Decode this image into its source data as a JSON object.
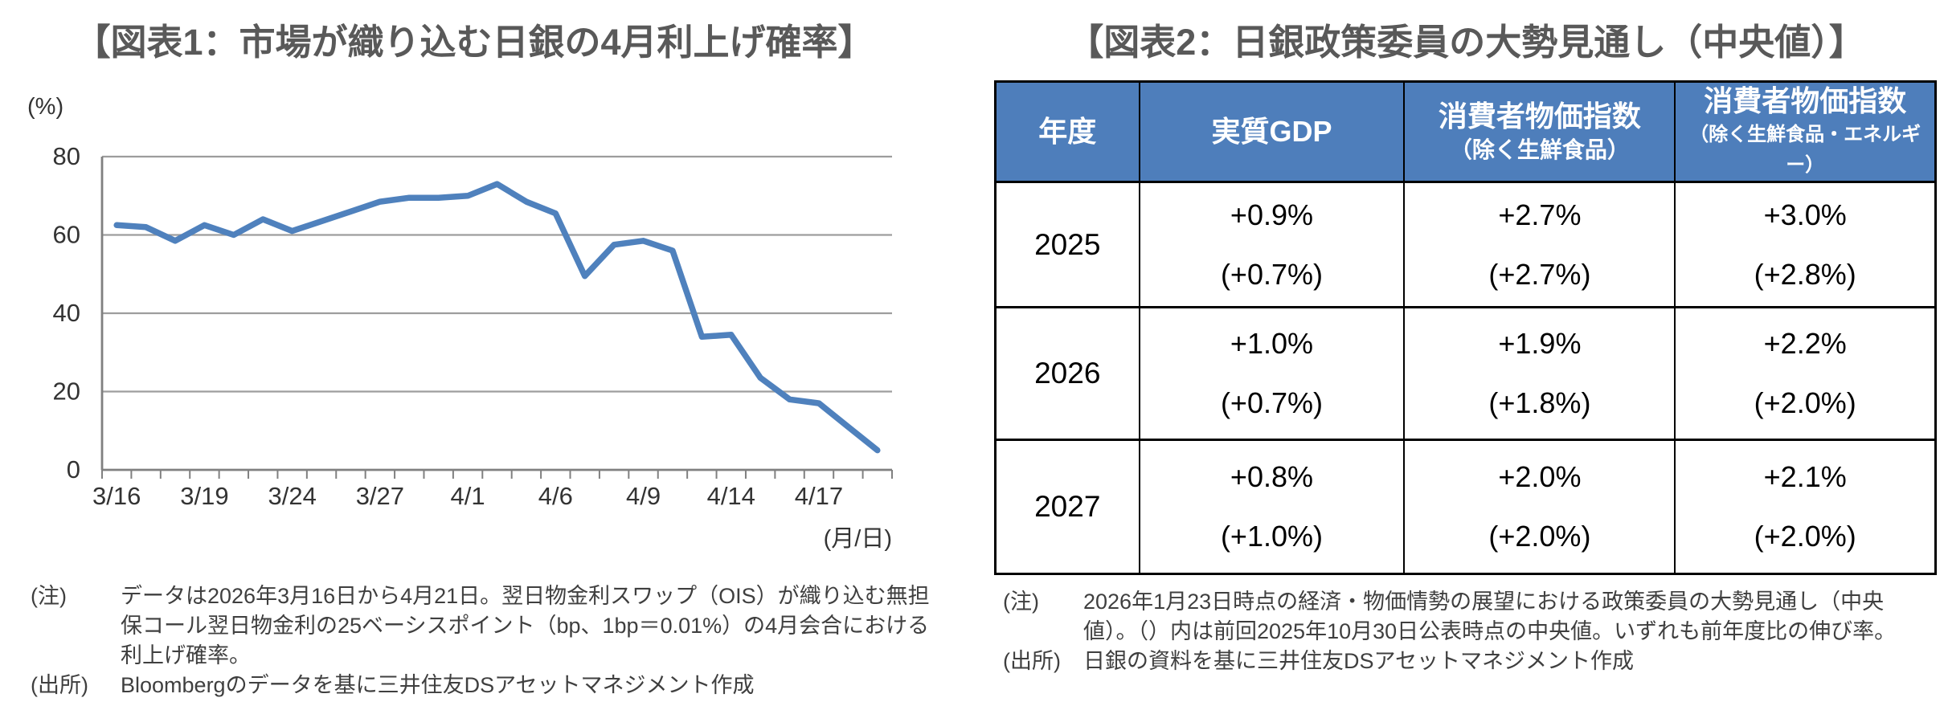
{
  "figure1": {
    "title": "【図表1：市場が織り込む日銀の4月利上げ確率】",
    "note_label": "(注)",
    "note_text": "データは2026年3月16日から4月21日。翌日物金利スワップ（OIS）が織り込む無担保コール翌日物金利の25ベーシスポイント（bp、1bp＝0.01%）の4月会合における利上げ確率。",
    "source_label": "(出所)",
    "source_text": "Bloombergのデータを基に三井住友DSアセットマネジメント作成"
  },
  "chart_data": {
    "type": "line",
    "title": "市場が織り込む日銀の4月利上げ確率",
    "ylabel_unit": "(%)",
    "xlabel_unit": "(月/日)",
    "ylim": [
      0,
      80
    ],
    "yticks": [
      0,
      20,
      40,
      60,
      80
    ],
    "grid": true,
    "legend": "none",
    "line_color": "#4f81bd",
    "categories": [
      "3/16",
      "3/17",
      "3/18",
      "3/19",
      "3/20",
      "3/23",
      "3/24",
      "3/25",
      "3/26",
      "3/27",
      "3/30",
      "3/31",
      "4/1",
      "4/2",
      "4/3",
      "4/6",
      "4/7",
      "4/8",
      "4/9",
      "4/10",
      "4/13",
      "4/14",
      "4/15",
      "4/16",
      "4/17",
      "4/20",
      "4/21"
    ],
    "values": [
      62.5,
      62,
      58.5,
      62.5,
      60,
      64,
      61,
      63.5,
      66,
      68.5,
      69.5,
      69.5,
      70,
      73,
      68.5,
      65.5,
      49.5,
      57.5,
      58.5,
      56,
      34,
      34.5,
      23.5,
      18,
      17,
      11,
      5
    ],
    "x_label_indices": [
      0,
      3,
      6,
      9,
      12,
      15,
      18,
      21,
      24
    ]
  },
  "figure2": {
    "title": "【図表2：日銀政策委員の大勢見通し（中央値）】",
    "note_label": "(注)",
    "note_text": "2026年1月23日時点の経済・物価情勢の展望における政策委員の大勢見通し（中央値）。（）内は前回2025年10月30日公表時点の中央値。いずれも前年度比の伸び率。",
    "source_label": "(出所)",
    "source_text": "日銀の資料を基に三井住友DSアセットマネジメント作成"
  },
  "table": {
    "columns": [
      {
        "label": "年度",
        "sublabel": ""
      },
      {
        "label": "実質GDP",
        "sublabel": ""
      },
      {
        "label": "消費者物価指数",
        "sublabel": "（除く生鮮食品）"
      },
      {
        "label": "消費者物価指数",
        "sublabel": "（除く生鮮食品・エネルギー）"
      }
    ],
    "rows": [
      {
        "year": "2025",
        "gdp": "+0.9%",
        "gdp_prev": "(+0.7%)",
        "cpi_ex_fresh": "+2.7%",
        "cpi_ex_fresh_prev": "(+2.7%)",
        "cpi_ex_fresh_energy": "+3.0%",
        "cpi_ex_fresh_energy_prev": "(+2.8%)"
      },
      {
        "year": "2026",
        "gdp": "+1.0%",
        "gdp_prev": "(+0.7%)",
        "cpi_ex_fresh": "+1.9%",
        "cpi_ex_fresh_prev": "(+1.8%)",
        "cpi_ex_fresh_energy": "+2.2%",
        "cpi_ex_fresh_energy_prev": "(+2.0%)"
      },
      {
        "year": "2027",
        "gdp": "+0.8%",
        "gdp_prev": "(+1.0%)",
        "cpi_ex_fresh": "+2.0%",
        "cpi_ex_fresh_prev": "(+2.0%)",
        "cpi_ex_fresh_energy": "+2.1%",
        "cpi_ex_fresh_energy_prev": "(+2.0%)"
      }
    ]
  },
  "colors": {
    "line": "#4f81bd",
    "gridline": "#9d9d9d",
    "axis": "#808080",
    "tick_text": "#333333",
    "header_bg": "#4e7ebb",
    "title_text": "#595959"
  }
}
